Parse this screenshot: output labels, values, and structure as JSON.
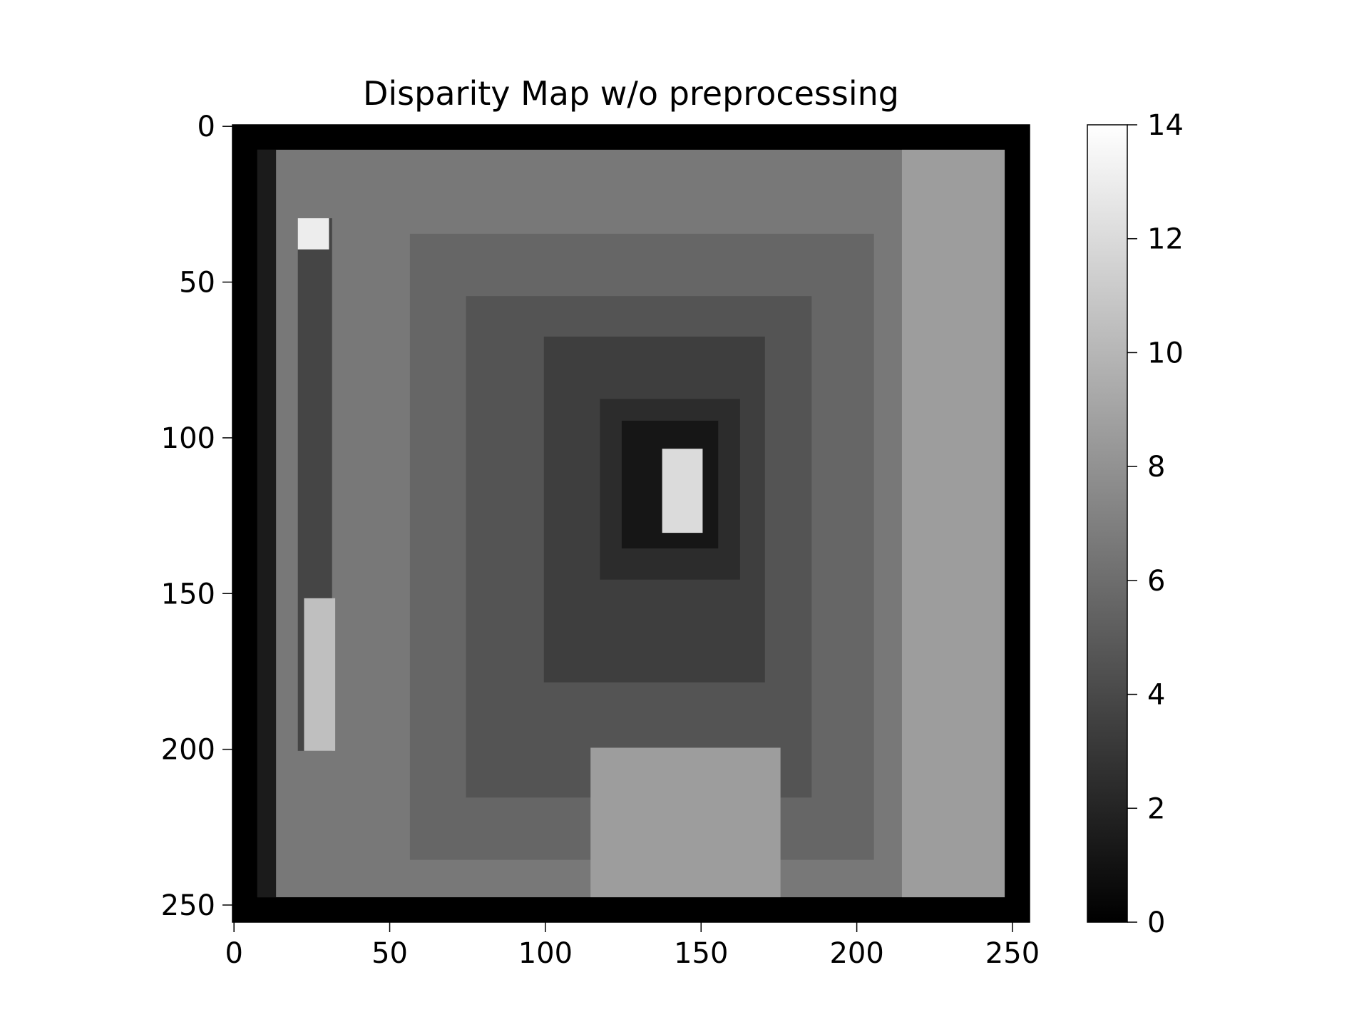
{
  "chart_data": {
    "type": "heatmap",
    "title": "Disparity Map w/o preprocessing",
    "xlabel": "",
    "ylabel": "",
    "colormap": "gray",
    "xlim": [
      0,
      255
    ],
    "ylim": [
      255,
      0
    ],
    "x_ticks": [
      0,
      50,
      100,
      150,
      200,
      250
    ],
    "y_ticks": [
      0,
      50,
      100,
      150,
      200,
      250
    ],
    "x_tick_labels": [
      "0",
      "50",
      "100",
      "150",
      "200",
      "250"
    ],
    "y_tick_labels": [
      "0",
      "50",
      "100",
      "150",
      "200",
      "250"
    ],
    "colorbar": {
      "range": [
        0,
        14
      ],
      "ticks": [
        0,
        2,
        4,
        6,
        8,
        10,
        12,
        14
      ],
      "tick_labels": [
        "0",
        "2",
        "4",
        "6",
        "8",
        "10",
        "12",
        "14"
      ]
    },
    "regions": [
      {
        "label": "border",
        "x": [
          0,
          255
        ],
        "y": [
          0,
          255
        ],
        "value": 0
      },
      {
        "label": "background",
        "x": [
          8,
          247
        ],
        "y": [
          8,
          247
        ],
        "value": 6.6
      },
      {
        "label": "right band",
        "x": [
          215,
          247
        ],
        "y": [
          8,
          247
        ],
        "value": 8.6
      },
      {
        "label": "left dark strip",
        "x": [
          8,
          13
        ],
        "y": [
          8,
          247
        ],
        "value": 1.5
      },
      {
        "label": "ring 1",
        "x": [
          57,
          205
        ],
        "y": [
          35,
          235
        ],
        "value": 5.6
      },
      {
        "label": "ring 2",
        "x": [
          75,
          185
        ],
        "y": [
          55,
          215
        ],
        "value": 4.6
      },
      {
        "label": "ring 3",
        "x": [
          100,
          170
        ],
        "y": [
          68,
          178
        ],
        "value": 3.4
      },
      {
        "label": "ring 4",
        "x": [
          118,
          162
        ],
        "y": [
          88,
          145
        ],
        "value": 2.4
      },
      {
        "label": "inner core",
        "x": [
          125,
          155
        ],
        "y": [
          95,
          135
        ],
        "value": 1.2
      },
      {
        "label": "bright object",
        "x": [
          138,
          150
        ],
        "y": [
          104,
          130
        ],
        "value": 12
      },
      {
        "label": "floor",
        "x": [
          115,
          175
        ],
        "y": [
          200,
          247
        ],
        "value": 8.6
      },
      {
        "label": "vertical bar",
        "x": [
          21,
          31
        ],
        "y": [
          30,
          200
        ],
        "value": 3.8
      },
      {
        "label": "bar highlight top",
        "x": [
          21,
          30
        ],
        "y": [
          30,
          39
        ],
        "value": 13
      },
      {
        "label": "bar highlight bottom",
        "x": [
          23,
          32
        ],
        "y": [
          152,
          200
        ],
        "value": 10.5
      }
    ]
  }
}
